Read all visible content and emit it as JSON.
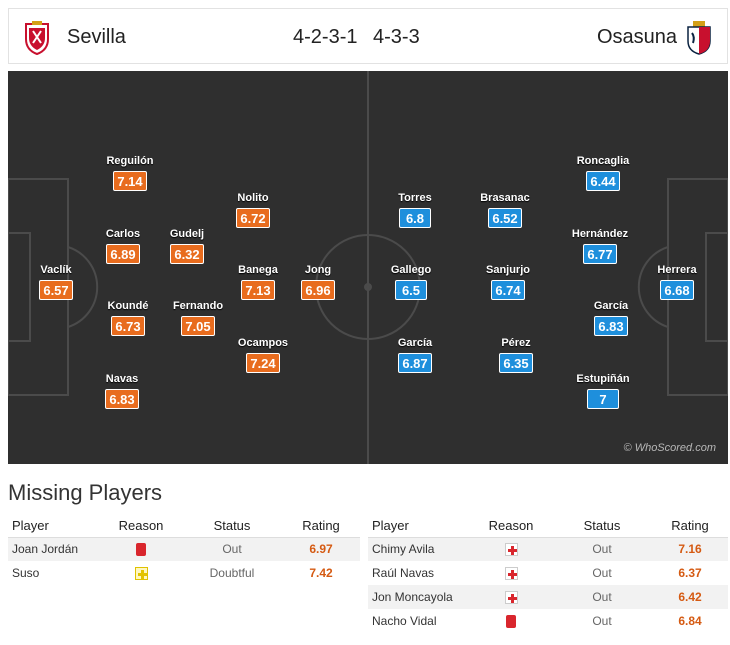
{
  "header": {
    "home_team": "Sevilla",
    "away_team": "Osasuna",
    "home_formation": "4-2-3-1",
    "away_formation": "4-3-3",
    "home_crest": "sevilla-crest-icon",
    "away_crest": "osasuna-crest-icon"
  },
  "colors": {
    "home": "#e86c1e",
    "away": "#1e8fdc"
  },
  "pitch": {
    "watermark": "© WhoScored.com",
    "home_players": [
      {
        "name": "Vaclík",
        "rating": "6.57"
      },
      {
        "name": "Reguilón",
        "rating": "7.14"
      },
      {
        "name": "Carlos",
        "rating": "6.89"
      },
      {
        "name": "Koundé",
        "rating": "6.73"
      },
      {
        "name": "Navas",
        "rating": "6.83"
      },
      {
        "name": "Gudelj",
        "rating": "6.32"
      },
      {
        "name": "Fernando",
        "rating": "7.05"
      },
      {
        "name": "Nolito",
        "rating": "6.72"
      },
      {
        "name": "Banega",
        "rating": "7.13"
      },
      {
        "name": "Ocampos",
        "rating": "7.24"
      },
      {
        "name": "Jong",
        "rating": "6.96"
      }
    ],
    "away_players": [
      {
        "name": "Torres",
        "rating": "6.8"
      },
      {
        "name": "Gallego",
        "rating": "6.5"
      },
      {
        "name": "García",
        "rating": "6.87"
      },
      {
        "name": "Brasanac",
        "rating": "6.52"
      },
      {
        "name": "Sanjurjo",
        "rating": "6.74"
      },
      {
        "name": "Pérez",
        "rating": "6.35"
      },
      {
        "name": "Roncaglia",
        "rating": "6.44"
      },
      {
        "name": "Hernández",
        "rating": "6.77"
      },
      {
        "name": "García",
        "rating": "6.83"
      },
      {
        "name": "Estupiñán",
        "rating": "7"
      },
      {
        "name": "Herrera",
        "rating": "6.68"
      }
    ]
  },
  "missing": {
    "title": "Missing Players",
    "headers": {
      "player": "Player",
      "reason": "Reason",
      "status": "Status",
      "rating": "Rating"
    },
    "home": [
      {
        "player": "Joan Jordán",
        "reason": "red-card-icon",
        "status": "Out",
        "rating": "6.97"
      },
      {
        "player": "Suso",
        "reason": "doubtful-injury-icon",
        "status": "Doubtful",
        "rating": "7.42"
      }
    ],
    "away": [
      {
        "player": "Chimy Avila",
        "reason": "injury-icon",
        "status": "Out",
        "rating": "7.16"
      },
      {
        "player": "Raúl Navas",
        "reason": "injury-icon",
        "status": "Out",
        "rating": "6.37"
      },
      {
        "player": "Jon Moncayola",
        "reason": "injury-icon",
        "status": "Out",
        "rating": "6.42"
      },
      {
        "player": "Nacho Vidal",
        "reason": "red-card-icon",
        "status": "Out",
        "rating": "6.84"
      }
    ]
  }
}
